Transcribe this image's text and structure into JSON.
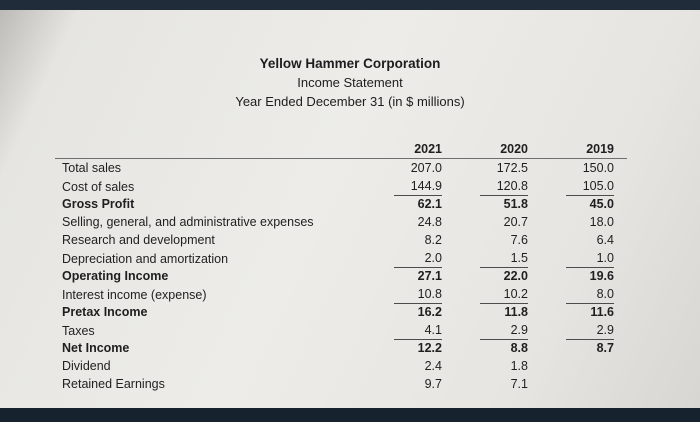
{
  "screen": {
    "top_bezel_color": "#212c3a",
    "bottom_bezel_color": "#17222f",
    "paper_color": "#edece8",
    "text_color": "#1f1f1f"
  },
  "header": {
    "company": "Yellow Hammer Corporation",
    "statement": "Income Statement",
    "period": "Year Ended December 31  (in $ millions)"
  },
  "table": {
    "year_columns": [
      "2021",
      "2020",
      "2019"
    ],
    "rows": [
      {
        "label": "Total sales",
        "values": [
          "207.0",
          "172.5",
          "150.0"
        ],
        "bold": false,
        "underline": false
      },
      {
        "label": "Cost of sales",
        "values": [
          "144.9",
          "120.8",
          "105.0"
        ],
        "bold": false,
        "underline": true
      },
      {
        "label": "Gross Profit",
        "values": [
          "62.1",
          "51.8",
          "45.0"
        ],
        "bold": true,
        "underline": false
      },
      {
        "label": "Selling, general, and administrative expenses",
        "values": [
          "24.8",
          "20.7",
          "18.0"
        ],
        "bold": false,
        "underline": false
      },
      {
        "label": "Research and development",
        "values": [
          "8.2",
          "7.6",
          "6.4"
        ],
        "bold": false,
        "underline": false
      },
      {
        "label": "Depreciation and amortization",
        "values": [
          "2.0",
          "1.5",
          "1.0"
        ],
        "bold": false,
        "underline": true
      },
      {
        "label": "Operating Income",
        "values": [
          "27.1",
          "22.0",
          "19.6"
        ],
        "bold": true,
        "underline": false
      },
      {
        "label": "Interest income (expense)",
        "values": [
          "10.8",
          "10.2",
          "8.0"
        ],
        "bold": false,
        "underline": true
      },
      {
        "label": "Pretax Income",
        "values": [
          "16.2",
          "11.8",
          "11.6"
        ],
        "bold": true,
        "underline": false
      },
      {
        "label": "Taxes",
        "values": [
          "4.1",
          "2.9",
          "2.9"
        ],
        "bold": false,
        "underline": true
      },
      {
        "label": "Net Income",
        "values": [
          "12.2",
          "8.8",
          "8.7"
        ],
        "bold": true,
        "underline": false
      },
      {
        "label": "Dividend",
        "values": [
          "2.4",
          "1.8",
          ""
        ],
        "bold": false,
        "underline": false
      },
      {
        "label": "Retained Earnings",
        "values": [
          "9.7",
          "7.1",
          ""
        ],
        "bold": false,
        "underline": false
      }
    ]
  }
}
